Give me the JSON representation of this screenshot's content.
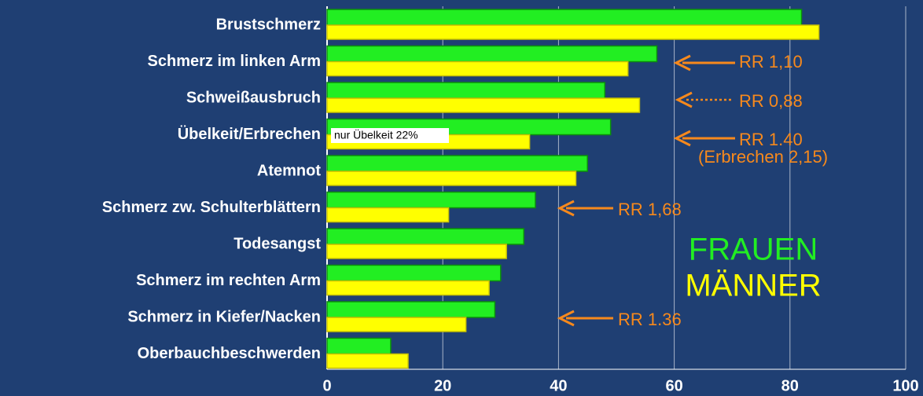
{
  "chart_data": {
    "type": "bar",
    "orientation": "horizontal",
    "categories": [
      "Brustschmerz",
      "Schmerz im linken Arm",
      "Schweißausbruch",
      "Übelkeit/Erbrechen",
      "Atemnot",
      "Schmerz zw. Schulterblättern",
      "Todesangst",
      "Schmerz im rechten Arm",
      "Schmerz in Kiefer/Nacken",
      "Oberbauchbeschwerden"
    ],
    "series": [
      {
        "name": "FRAUEN",
        "color": "#22ee22",
        "values": [
          82,
          57,
          48,
          49,
          45,
          36,
          34,
          30,
          29,
          11
        ]
      },
      {
        "name": "MÄNNER",
        "color": "#ffff00",
        "values": [
          85,
          52,
          54,
          35,
          43,
          21,
          31,
          28,
          24,
          14
        ]
      }
    ],
    "xlim": [
      0,
      100
    ],
    "xticks": [
      0,
      20,
      40,
      60,
      80,
      100
    ],
    "grid": true,
    "annotations": [
      "RR 1,10",
      "RR 0,88",
      "RR 1.40",
      "(Erbrechen  2,15)",
      "RR 1,68",
      "RR 1.36",
      "nur Übelkeit 22%"
    ]
  }
}
